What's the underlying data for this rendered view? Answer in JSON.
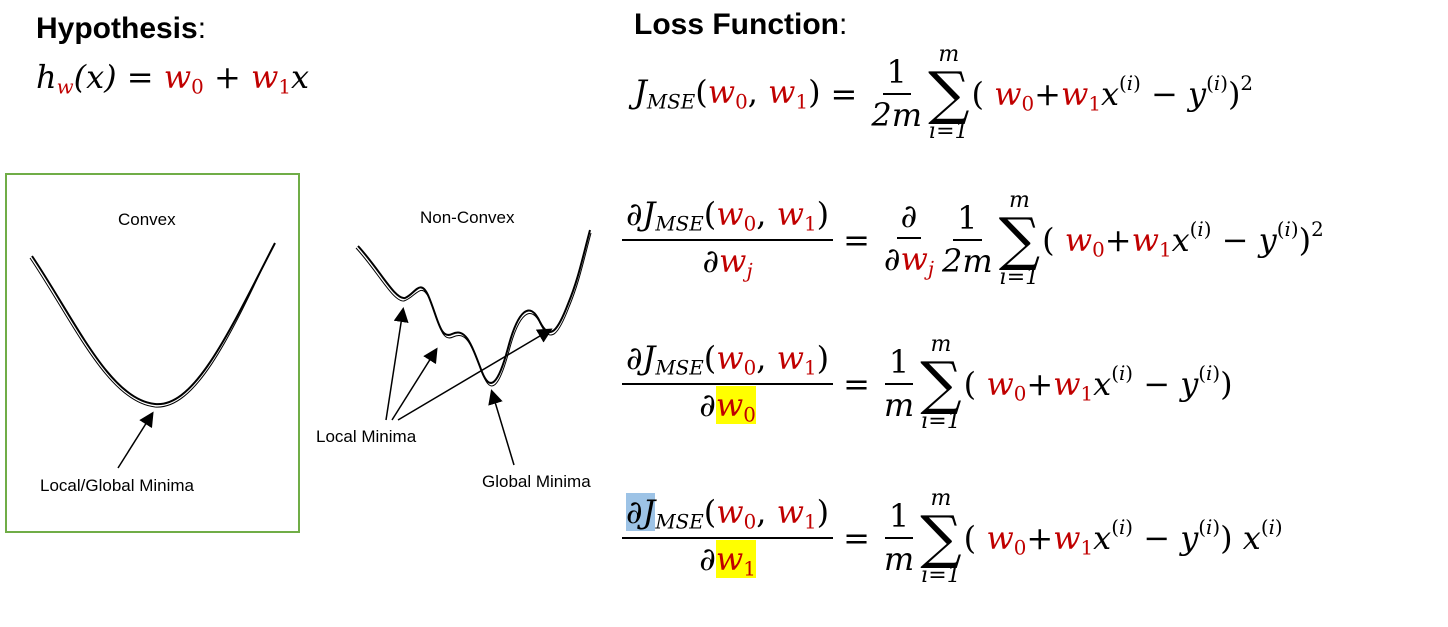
{
  "hypothesis": {
    "heading": "Hypothesis",
    "colon": ":",
    "h": "h",
    "w_sub": "w",
    "x_arg": "(x)",
    "eq": "=",
    "w0": "w",
    "zero": "0",
    "plus": "+",
    "w1": "w",
    "one": "1",
    "x": "x"
  },
  "loss": {
    "heading": "Loss Function",
    "colon": ":"
  },
  "equations": [
    {
      "lhs_num": "J",
      "lhs_sub": "MSE",
      "sum_top": "m",
      "sum_bot": "i=1",
      "frac_num": "1",
      "frac_den": "2m",
      "tail": "2"
    },
    {
      "d": "∂",
      "j": "j",
      "sum_top": "m",
      "sum_bot": "i=1",
      "frac_num": "1",
      "frac_den": "2m",
      "tail": "2"
    },
    {
      "sum_top": "m",
      "sum_bot": "i=1",
      "frac_num": "1",
      "frac_den": "m"
    },
    {
      "sum_top": "m",
      "sum_bot": "i=1",
      "frac_num": "1",
      "frac_den": "m"
    }
  ],
  "plots": {
    "convex_title": "Convex",
    "convex_label": "Local/Global Minima",
    "nonconvex_title": "Non-Convex",
    "local_label": "Local Minima",
    "global_label": "Global Minima"
  },
  "colors": {
    "weights": "#c00000",
    "highlight_yellow": "#ffff00",
    "highlight_blue": "#9dc3e6",
    "frame_green": "#70ad47"
  }
}
